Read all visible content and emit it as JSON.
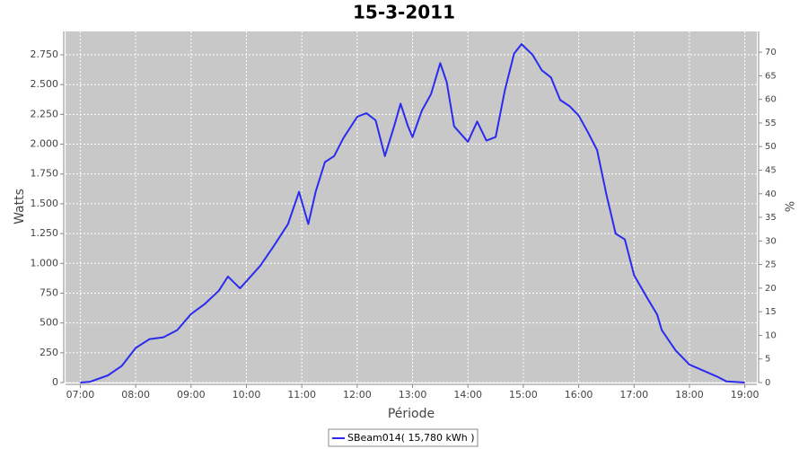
{
  "chart_data": {
    "type": "line",
    "title": "15-3-2011",
    "x_label": "Période",
    "y_label": "Watts",
    "y2_label": "%",
    "x": [
      "07:00",
      "07:10",
      "07:30",
      "07:45",
      "08:00",
      "08:15",
      "08:30",
      "08:45",
      "09:00",
      "09:15",
      "09:30",
      "09:40",
      "09:53",
      "10:00",
      "10:15",
      "10:30",
      "10:45",
      "10:57",
      "11:07",
      "11:15",
      "11:25",
      "11:35",
      "11:45",
      "12:00",
      "12:10",
      "12:20",
      "12:30",
      "12:40",
      "12:47",
      "12:55",
      "13:00",
      "13:10",
      "13:20",
      "13:30",
      "13:37",
      "13:45",
      "14:00",
      "14:10",
      "14:20",
      "14:30",
      "14:40",
      "14:50",
      "14:58",
      "15:10",
      "15:20",
      "15:30",
      "15:40",
      "15:50",
      "16:00",
      "16:10",
      "16:20",
      "16:30",
      "16:40",
      "16:50",
      "17:00",
      "17:15",
      "17:25",
      "17:30",
      "17:45",
      "18:00",
      "18:15",
      "18:30",
      "18:40",
      "19:00"
    ],
    "series": [
      {
        "name": "SBeam014( 15,780 kWh )",
        "color": "#2b2bf0",
        "values": [
          0,
          5,
          60,
          140,
          290,
          365,
          380,
          440,
          575,
          660,
          770,
          890,
          790,
          850,
          980,
          1150,
          1330,
          1600,
          1330,
          1600,
          1850,
          1900,
          2050,
          2230,
          2260,
          2200,
          1900,
          2150,
          2340,
          2150,
          2060,
          2280,
          2420,
          2680,
          2520,
          2150,
          2020,
          2190,
          2030,
          2060,
          2450,
          2760,
          2840,
          2750,
          2620,
          2560,
          2370,
          2320,
          2240,
          2100,
          1950,
          1580,
          1250,
          1200,
          900,
          700,
          570,
          440,
          270,
          150,
          100,
          50,
          10,
          0
        ]
      }
    ],
    "xlim": [
      "06:44",
      "19:13"
    ],
    "xticks": [
      "07:00",
      "08:00",
      "09:00",
      "10:00",
      "11:00",
      "12:00",
      "13:00",
      "14:00",
      "15:00",
      "16:00",
      "17:00",
      "18:00",
      "19:00"
    ],
    "ylim": [
      0,
      2946
    ],
    "yticks": [
      0,
      250,
      500,
      750,
      {
        "value": 1000,
        "label": "1.000"
      },
      {
        "value": 1250,
        "label": "1.250"
      },
      {
        "value": 1500,
        "label": "1.500"
      },
      {
        "value": 1750,
        "label": "1.750"
      },
      {
        "value": 2000,
        "label": "2.000"
      },
      {
        "value": 2250,
        "label": "2.250"
      },
      {
        "value": 2500,
        "label": "2.500"
      },
      {
        "value": 2750,
        "label": "2.750"
      }
    ],
    "y2lim": [
      0,
      74.4
    ],
    "y2ticks": [
      0,
      5,
      10,
      15,
      20,
      25,
      30,
      35,
      40,
      45,
      50,
      55,
      60,
      65,
      70
    ],
    "grid": true,
    "legend": "bottom"
  }
}
